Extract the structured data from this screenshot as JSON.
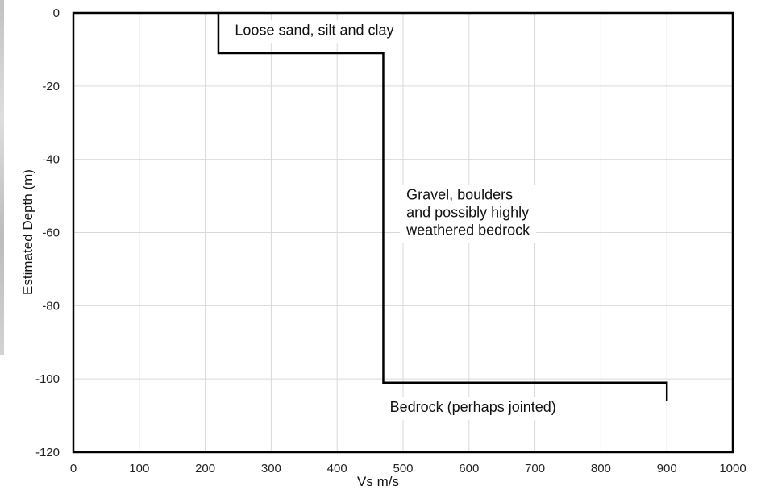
{
  "chart_data": {
    "type": "line",
    "title": "",
    "xlabel": "Vs m/s",
    "ylabel": "Estimated Depth (m)",
    "xlim": [
      0,
      1000
    ],
    "ylim": [
      -120,
      0
    ],
    "grid": true,
    "x_ticks": [
      0,
      100,
      200,
      300,
      400,
      500,
      600,
      700,
      800,
      900,
      1000
    ],
    "y_ticks": [
      0,
      -20,
      -40,
      -60,
      -80,
      -100,
      -120
    ],
    "series": [
      {
        "color": "#000000",
        "points": [
          {
            "x": 220,
            "y": 0
          },
          {
            "x": 220,
            "y": -11
          },
          {
            "x": 470,
            "y": -11
          },
          {
            "x": 470,
            "y": -101
          },
          {
            "x": 900,
            "y": -101
          },
          {
            "x": 900,
            "y": -106
          }
        ]
      }
    ],
    "annotations": [
      {
        "lines": [
          "Loose sand, silt and clay"
        ],
        "x": 245,
        "y": -6
      },
      {
        "lines": [
          "Gravel, boulders",
          "and possibly highly",
          "weathered bedrock"
        ],
        "x": 505,
        "y": -51
      },
      {
        "lines": [
          "Bedrock (perhaps jointed)"
        ],
        "x": 480,
        "y": -109
      }
    ]
  }
}
